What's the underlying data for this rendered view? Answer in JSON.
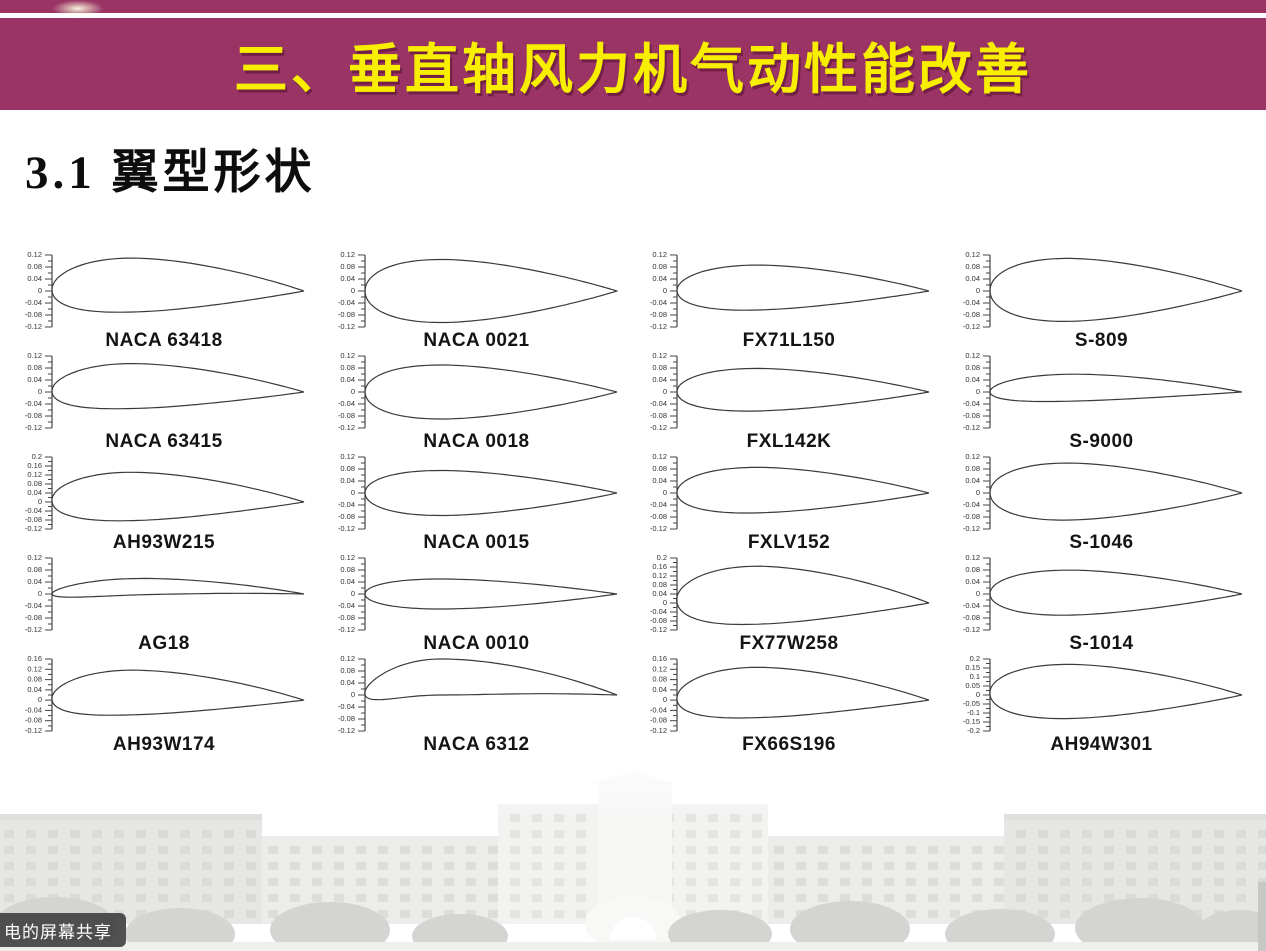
{
  "header": {
    "top_strip_color": "#993464",
    "band_color": "#993464",
    "title": "三、垂直轴风力机气动性能改善",
    "title_color": "#f8ee00"
  },
  "section": {
    "title": "3.1 翼型形状"
  },
  "screen_share": {
    "label": "电的屏幕共享"
  },
  "chart_data": {
    "type": "diagram-grid",
    "description": "20 airfoil cross-section profiles arranged 4 columns x 5 rows, each with a small vertical y/c axis on the left",
    "columns": 4,
    "rows": 5,
    "axis_color": "#444444",
    "outline_color": "#3a3a3a",
    "airfoils": [
      {
        "name": "NACA 63418",
        "ymax": 0.12,
        "ymin": -0.12,
        "ticks": [
          "0.12",
          "0.08",
          "0.04",
          "0",
          "-0.04",
          "-0.08",
          "-0.12"
        ],
        "shape": {
          "t": 0.18,
          "m": 0.02,
          "p": 0.35
        }
      },
      {
        "name": "NACA 0021",
        "ymax": 0.12,
        "ymin": -0.12,
        "ticks": [
          "0.12",
          "0.08",
          "0.04",
          "0",
          "-0.04",
          "-0.08",
          "-0.12"
        ],
        "shape": {
          "t": 0.21,
          "m": 0,
          "p": 0
        }
      },
      {
        "name": "FX71L150",
        "ymax": 0.12,
        "ymin": -0.12,
        "ticks": [
          "0.12",
          "0.08",
          "0.04",
          "0",
          "-0.04",
          "-0.08",
          "-0.12"
        ],
        "shape": {
          "t": 0.15,
          "m": 0.012,
          "p": 0.4
        }
      },
      {
        "name": "S-809",
        "ymax": 0.12,
        "ymin": -0.12,
        "ticks": [
          "0.12",
          "0.08",
          "0.04",
          "0",
          "-0.04",
          "-0.08",
          "-0.12"
        ],
        "shape": {
          "t": 0.21,
          "m": 0.004,
          "p": 0.45
        }
      },
      {
        "name": "NACA 63415",
        "ymax": 0.12,
        "ymin": -0.12,
        "ticks": [
          "0.12",
          "0.08",
          "0.04",
          "0",
          "-0.04",
          "-0.08",
          "-0.12"
        ],
        "shape": {
          "t": 0.15,
          "m": 0.02,
          "p": 0.35
        }
      },
      {
        "name": "NACA 0018",
        "ymax": 0.12,
        "ymin": -0.12,
        "ticks": [
          "0.12",
          "0.08",
          "0.04",
          "0",
          "-0.04",
          "-0.08",
          "-0.12"
        ],
        "shape": {
          "t": 0.18,
          "m": 0,
          "p": 0
        }
      },
      {
        "name": "FXL142K",
        "ymax": 0.12,
        "ymin": -0.12,
        "ticks": [
          "0.12",
          "0.08",
          "0.04",
          "0",
          "-0.04",
          "-0.08",
          "-0.12"
        ],
        "shape": {
          "t": 0.142,
          "m": 0.008,
          "p": 0.4
        }
      },
      {
        "name": "S-9000",
        "ymax": 0.12,
        "ymin": -0.12,
        "ticks": [
          "0.12",
          "0.08",
          "0.04",
          "0",
          "-0.04",
          "-0.08",
          "-0.12"
        ],
        "shape": {
          "t": 0.09,
          "m": 0.015,
          "p": 0.4
        }
      },
      {
        "name": "AH93W215",
        "ymax": 0.2,
        "ymin": -0.12,
        "ticks": [
          "0.2",
          "0.16",
          "0.12",
          "0.08",
          "0.04",
          "0",
          "-0.04",
          "-0.08",
          "-0.12"
        ],
        "shape": {
          "t": 0.215,
          "m": 0.025,
          "p": 0.35
        }
      },
      {
        "name": "NACA 0015",
        "ymax": 0.12,
        "ymin": -0.12,
        "ticks": [
          "0.12",
          "0.08",
          "0.04",
          "0",
          "-0.04",
          "-0.08",
          "-0.12"
        ],
        "shape": {
          "t": 0.15,
          "m": 0,
          "p": 0
        }
      },
      {
        "name": "FXLV152",
        "ymax": 0.12,
        "ymin": -0.12,
        "ticks": [
          "0.12",
          "0.08",
          "0.04",
          "0",
          "-0.04",
          "-0.08",
          "-0.12"
        ],
        "shape": {
          "t": 0.152,
          "m": 0.01,
          "p": 0.4
        }
      },
      {
        "name": "S-1046",
        "ymax": 0.12,
        "ymin": -0.12,
        "ticks": [
          "0.12",
          "0.08",
          "0.04",
          "0",
          "-0.04",
          "-0.08",
          "-0.12"
        ],
        "shape": {
          "t": 0.19,
          "m": 0.005,
          "p": 0.4
        }
      },
      {
        "name": "AG18",
        "ymax": 0.12,
        "ymin": -0.12,
        "ticks": [
          "0.12",
          "0.08",
          "0.04",
          "0",
          "-0.04",
          "-0.08",
          "-0.12"
        ],
        "shape": {
          "t": 0.055,
          "m": 0.025,
          "p": 0.4
        }
      },
      {
        "name": "NACA 0010",
        "ymax": 0.12,
        "ymin": -0.12,
        "ticks": [
          "0.12",
          "0.08",
          "0.04",
          "0",
          "-0.04",
          "-0.08",
          "-0.12"
        ],
        "shape": {
          "t": 0.1,
          "m": 0,
          "p": 0
        }
      },
      {
        "name": "FX77W258",
        "ymax": 0.2,
        "ymin": -0.12,
        "ticks": [
          "0.2",
          "0.16",
          "0.12",
          "0.08",
          "0.04",
          "0",
          "-0.04",
          "-0.08",
          "-0.12"
        ],
        "shape": {
          "t": 0.258,
          "m": 0.035,
          "p": 0.35
        }
      },
      {
        "name": "S-1014",
        "ymax": 0.12,
        "ymin": -0.12,
        "ticks": [
          "0.12",
          "0.08",
          "0.04",
          "0",
          "-0.04",
          "-0.08",
          "-0.12"
        ],
        "shape": {
          "t": 0.15,
          "m": 0.005,
          "p": 0.45
        }
      },
      {
        "name": "AH93W174",
        "ymax": 0.16,
        "ymin": -0.12,
        "ticks": [
          "0.16",
          "0.12",
          "0.08",
          "0.04",
          "0",
          "-0.04",
          "-0.08",
          "-0.12"
        ],
        "shape": {
          "t": 0.174,
          "m": 0.03,
          "p": 0.35
        }
      },
      {
        "name": "NACA 6312",
        "ymax": 0.12,
        "ymin": -0.12,
        "ticks": [
          "0.12",
          "0.08",
          "0.04",
          "0",
          "-0.04",
          "-0.08",
          "-0.12"
        ],
        "shape": {
          "t": 0.12,
          "m": 0.06,
          "p": 0.3
        }
      },
      {
        "name": "FX66S196",
        "ymax": 0.16,
        "ymin": -0.12,
        "ticks": [
          "0.16",
          "0.12",
          "0.08",
          "0.04",
          "0",
          "-0.04",
          "-0.08",
          "-0.12"
        ],
        "shape": {
          "t": 0.196,
          "m": 0.03,
          "p": 0.35
        }
      },
      {
        "name": "AH94W301",
        "ymax": 0.2,
        "ymin": -0.2,
        "ticks": [
          "0.2",
          "0.15",
          "0.1",
          "0.05",
          "0",
          "-0.05",
          "-0.1",
          "-0.15",
          "-0.2"
        ],
        "shape": {
          "t": 0.301,
          "m": 0.02,
          "p": 0.35
        }
      }
    ]
  }
}
